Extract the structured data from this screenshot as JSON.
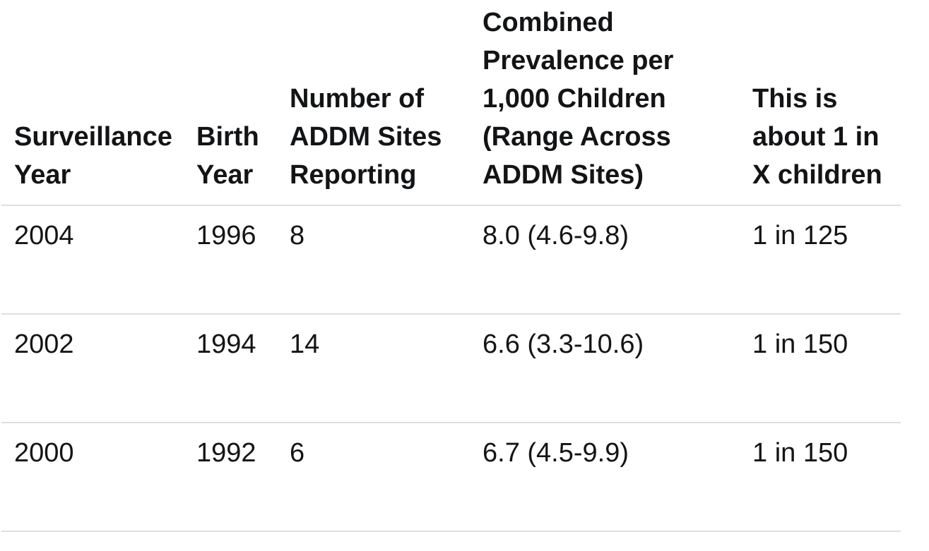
{
  "chart_data": {
    "type": "table",
    "title": "",
    "columns": [
      "Surveillance Year",
      "Birth Year",
      "Number of ADDM Sites Reporting",
      "Combined Prevalence per 1,000 Children (Range Across ADDM Sites)",
      "This is about 1 in X children"
    ],
    "rows": [
      [
        "2004",
        "1996",
        "8",
        "8.0 (4.6-9.8)",
        "1 in 125"
      ],
      [
        "2002",
        "1994",
        "14",
        "6.6 (3.3-10.6)",
        "1 in 150"
      ],
      [
        "2000",
        "1992",
        "6",
        "6.7 (4.5-9.9)",
        "1 in 150"
      ]
    ]
  },
  "display": {
    "headers": [
      "Surveillance\nYear",
      "Birth\nYear",
      "Number of\nADDM Sites\nReporting",
      "Combined\nPrevalence per\n1,000 Children\n(Range Across\nADDM Sites)",
      "This is\nabout 1 in\nX children"
    ]
  },
  "colors": {
    "text": "#131416",
    "row_border": "#dcdfe3",
    "background": "#ffffff"
  }
}
